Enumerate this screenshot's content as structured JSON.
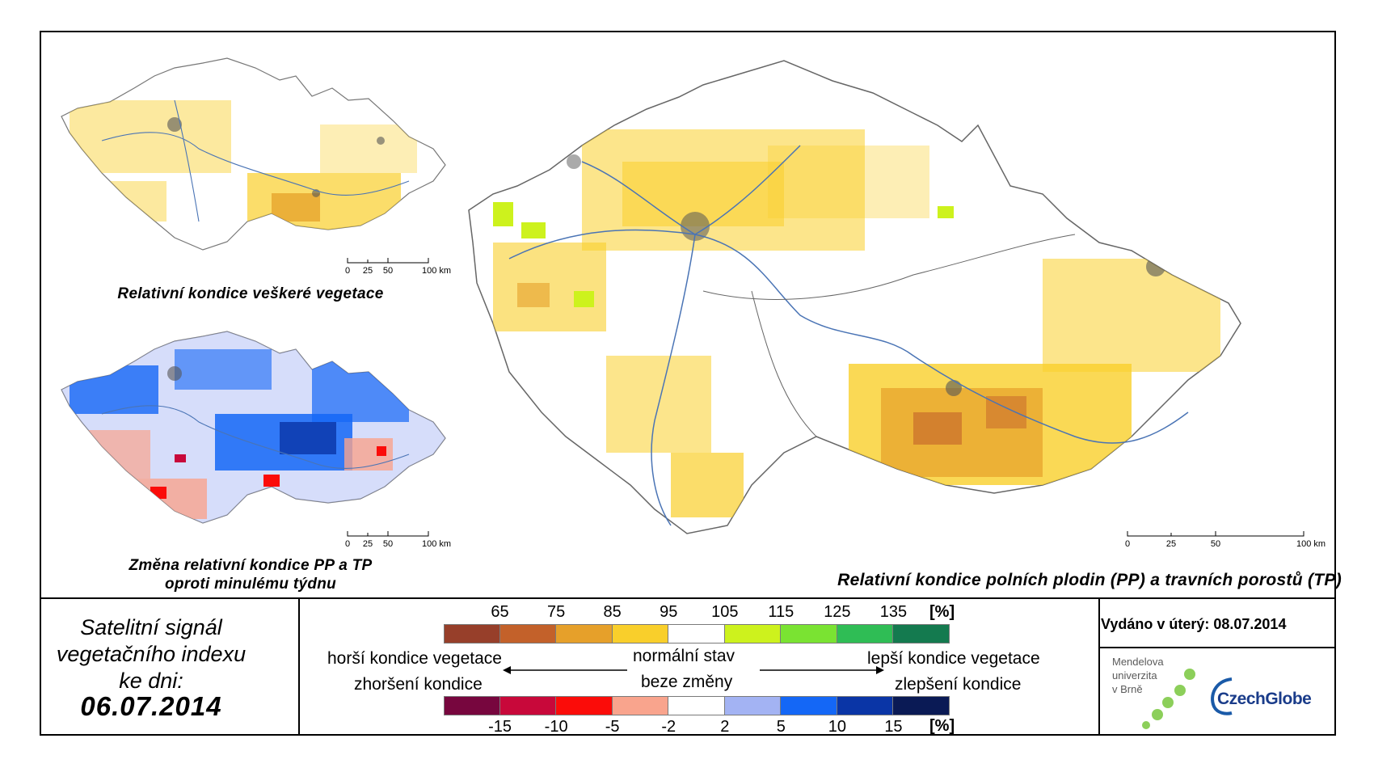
{
  "maps": {
    "small_top": {
      "caption": "Relativní kondice veškeré vegetace"
    },
    "small_bottom": {
      "caption_line1": "Změna relativní kondice PP a TP",
      "caption_line2": "oproti minulému týdnu"
    },
    "main": {
      "caption": "Relativní kondice polních plodin (PP) a travních porostů (TP)"
    }
  },
  "scale_small": {
    "labels": [
      "0",
      "25",
      "50",
      "100 km"
    ]
  },
  "scale_main": {
    "labels": [
      "0",
      "25",
      "50",
      "100 km"
    ]
  },
  "satellite": {
    "line1": "Satelitní signál",
    "line2": "vegetačního indexu",
    "line3": "ke dni:",
    "date": "06.07.2014"
  },
  "legend": {
    "condition": {
      "labels": [
        "65",
        "75",
        "85",
        "95",
        "105",
        "115",
        "125",
        "135"
      ],
      "unit": "[%]",
      "colors": [
        "#973f2a",
        "#c3612a",
        "#e6a02a",
        "#f9cf2b",
        "#ffffff",
        "#cdf21d",
        "#7ae332",
        "#2fbd55",
        "#147a4f"
      ]
    },
    "change": {
      "labels": [
        "-15",
        "-10",
        "-5",
        "-2",
        "2",
        "5",
        "10",
        "15"
      ],
      "unit": "[%]",
      "colors": [
        "#77063e",
        "#c8083a",
        "#fb0c09",
        "#f9a48d",
        "#ffffff",
        "#a3b3f3",
        "#1467f6",
        "#0a35a6",
        "#0a1a55"
      ]
    },
    "worse_condition": "horší kondice vegetace",
    "worse_change": "zhoršení kondice",
    "normal_state": "normální stav",
    "no_change": "beze změny",
    "better_condition": "lepší kondice vegetace",
    "better_change": "zlepšení kondice"
  },
  "issued": "Vydáno v úterý: 08.07.2014",
  "logos": {
    "mendel_line1": "Mendelova",
    "mendel_line2": "univerzita",
    "mendel_line3": "v Brně",
    "czechglobe": "CzechGlobe"
  }
}
